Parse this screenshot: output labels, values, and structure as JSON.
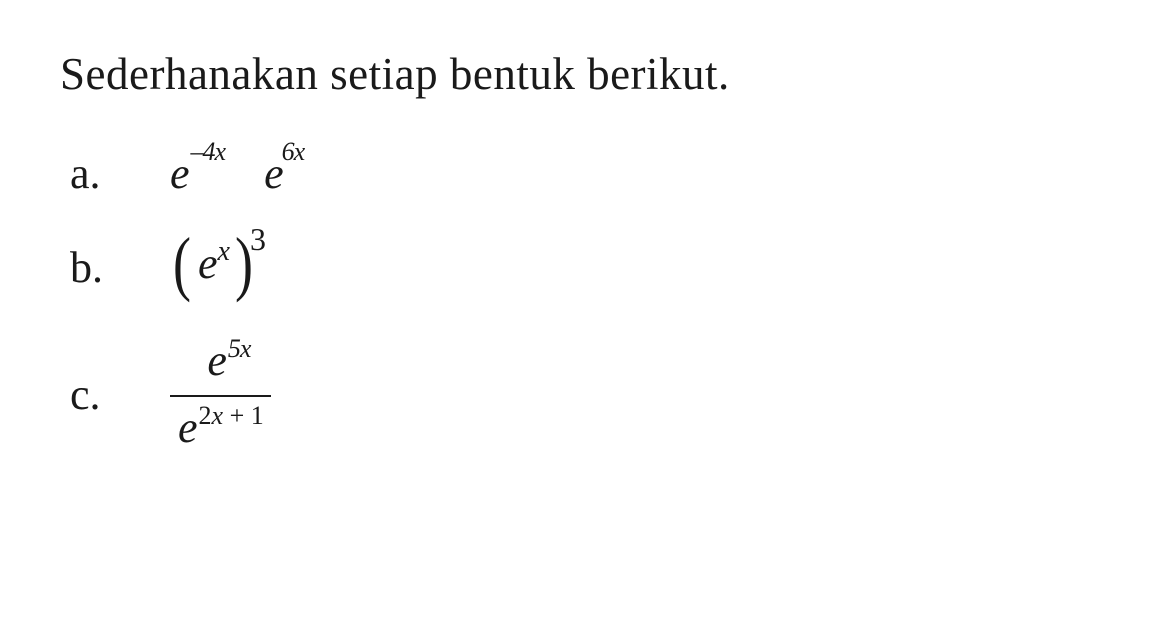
{
  "text_color": "#1a1a1a",
  "background_color": "#ffffff",
  "font_family": "Times New Roman",
  "instruction": "Sederhanakan setiap bentuk berikut.",
  "problems": {
    "a": {
      "label": "a.",
      "base1": "e",
      "exp1": "–4x",
      "base2": "e",
      "exp2": "6x"
    },
    "b": {
      "label": "b.",
      "lparen": "(",
      "base": "e",
      "inner_exp": "x",
      "rparen": ")",
      "outer_exp": "3"
    },
    "c": {
      "label": "c.",
      "num_base": "e",
      "num_exp": "5x",
      "den_base": "e",
      "den_exp_pre": "2",
      "den_exp_x": "x",
      "den_exp_post": " + 1"
    }
  }
}
